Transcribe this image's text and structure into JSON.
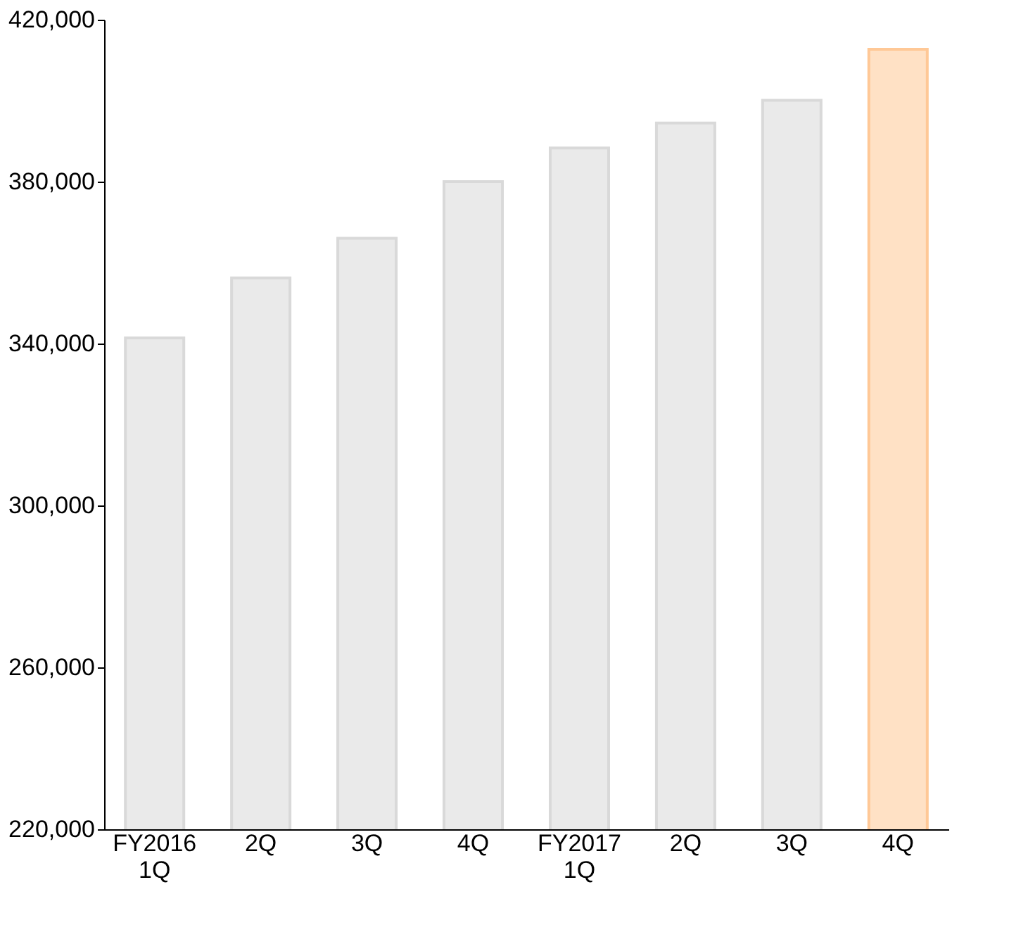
{
  "chart_data": {
    "type": "bar",
    "categories": [
      "FY2016\n1Q",
      "2Q",
      "3Q",
      "4Q",
      "FY2017\n1Q",
      "2Q",
      "3Q",
      "4Q"
    ],
    "values": [
      341400,
      356200,
      366000,
      380000,
      388300,
      394500,
      400100,
      412700
    ],
    "colors": [
      "#d9d9d9",
      "#d9d9d9",
      "#d9d9d9",
      "#d9d9d9",
      "#d9d9d9",
      "#d9d9d9",
      "#d9d9d9",
      "#ffc896"
    ],
    "ylim": [
      220000,
      420000
    ],
    "yticks": [
      {
        "value": 220000,
        "label": "220,000"
      },
      {
        "value": 260000,
        "label": "260,000"
      },
      {
        "value": 300000,
        "label": "300,000"
      },
      {
        "value": 340000,
        "label": "340,000"
      },
      {
        "value": 380000,
        "label": "380,000"
      },
      {
        "value": 420000,
        "label": "420,000"
      }
    ],
    "grid": false
  }
}
